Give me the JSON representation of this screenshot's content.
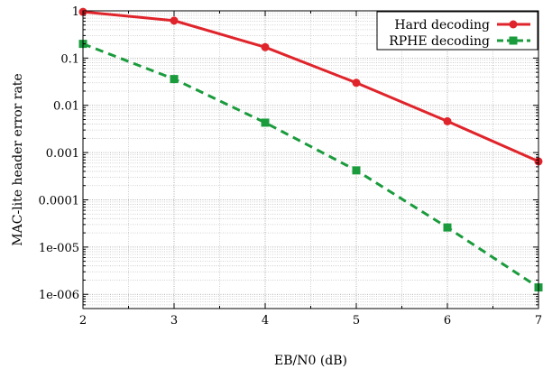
{
  "chart_data": {
    "type": "line",
    "title": "",
    "xlabel": "EB/N0 (dB)",
    "ylabel": "MAC-lite header error rate",
    "x": [
      2,
      3,
      4,
      5,
      6,
      7
    ],
    "xlim": [
      2,
      7
    ],
    "ylim": [
      5e-07,
      1
    ],
    "yscale": "log",
    "x_tick_labels": [
      "2",
      "3",
      "4",
      "5",
      "6",
      "7"
    ],
    "y_ticks": [
      1e-06,
      1e-05,
      0.0001,
      0.001,
      0.01,
      0.1,
      1
    ],
    "y_tick_labels": [
      "1e-006",
      "1e-005",
      "0.0001",
      "0.001",
      "0.01",
      "0.1",
      "1"
    ],
    "grid": true,
    "legend_position": "top-right",
    "series": [
      {
        "name": "Hard decoding",
        "color": "#e0242b",
        "line_style": "solid",
        "marker": "circle",
        "values": [
          0.95,
          0.62,
          0.17,
          0.03,
          0.0046,
          0.00065
        ]
      },
      {
        "name": "RPHE decoding",
        "color": "#1a9b3c",
        "line_style": "dashed",
        "marker": "square",
        "values": [
          0.2,
          0.036,
          0.0043,
          0.00042,
          2.6e-05,
          1.4e-06
        ]
      }
    ]
  }
}
